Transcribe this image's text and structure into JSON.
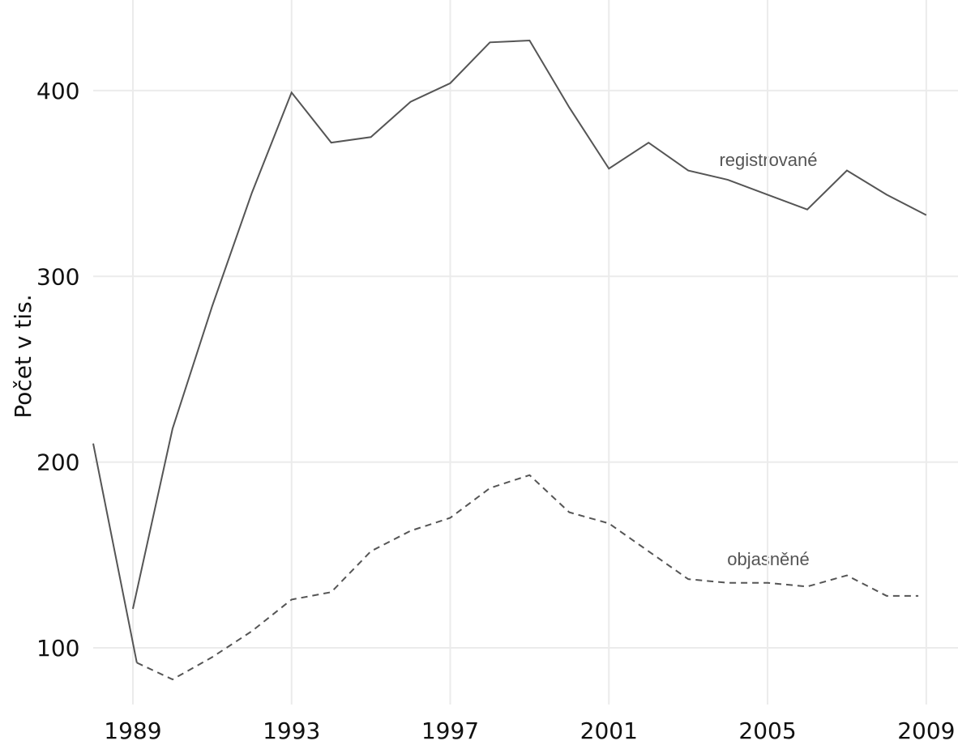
{
  "chart_data": {
    "type": "line",
    "y_label": "Počet v tis.",
    "annotations": [
      "registrované",
      "objasněné"
    ],
    "xlim": [
      1988,
      2009.8
    ],
    "xticks": [
      1989,
      1993,
      1997,
      2001,
      2005,
      2009
    ],
    "ylim": [
      69.5,
      448.8
    ],
    "yticks": [
      100,
      200,
      300,
      400
    ],
    "grid": true,
    "series": [
      {
        "color": "#555555",
        "dash": false,
        "x": [
          1989,
          1990,
          1991,
          1992,
          1993,
          1994,
          1995,
          1996,
          1997,
          1998,
          1999,
          2000,
          2001,
          2002,
          2003,
          2004,
          2005,
          2006,
          2007,
          2008,
          2009
        ],
        "values": [
          121,
          218,
          284,
          345,
          399,
          372,
          375,
          394,
          404,
          426,
          427,
          391,
          358,
          372,
          357,
          352,
          344,
          336,
          357,
          344,
          333
        ]
      },
      {
        "color": "#555555",
        "dash": true,
        "x": [
          1989.1,
          1990,
          1991,
          1992,
          1993,
          1994,
          1995,
          1996,
          1997,
          1998,
          1999,
          2000,
          2001,
          2002,
          2003,
          2004,
          2005,
          2006,
          2007,
          2008,
          2008.8
        ],
        "values": [
          92,
          83,
          95,
          109,
          126,
          130,
          152,
          163,
          170,
          186,
          193,
          173,
          167,
          152,
          137,
          135,
          135,
          133,
          139,
          128,
          128
        ]
      },
      {
        "color": "#555555",
        "dash": false,
        "x": [
          1988,
          1989.1
        ],
        "values": [
          210,
          92
        ]
      }
    ]
  }
}
